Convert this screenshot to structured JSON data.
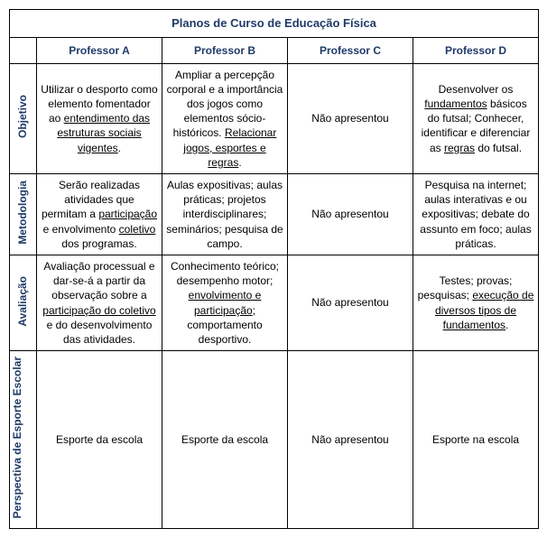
{
  "table": {
    "title": "Planos de Curso de Educação Física",
    "columns": [
      "Professor A",
      "Professor B",
      "Professor C",
      "Professor D"
    ],
    "rows": [
      {
        "header": "Objetivo",
        "cells": [
          {
            "segments": [
              {
                "t": "Utilizar o desporto como elemento fomentador ao "
              },
              {
                "t": "entendimento das estruturas sociais vigentes",
                "u": true
              },
              {
                "t": "."
              }
            ]
          },
          {
            "segments": [
              {
                "t": "Ampliar a percepção corporal e a importância dos jogos como elementos sócio-históricos. "
              },
              {
                "t": "Relacionar jogos, esportes e regras",
                "u": true
              },
              {
                "t": "."
              }
            ]
          },
          {
            "segments": [
              {
                "t": "Não apresentou"
              }
            ]
          },
          {
            "segments": [
              {
                "t": "Desenvolver os "
              },
              {
                "t": "fundamentos",
                "u": true
              },
              {
                "t": " básicos do futsal; Conhecer, identificar e diferenciar as "
              },
              {
                "t": "regras",
                "u": true
              },
              {
                "t": " do futsal."
              }
            ]
          }
        ]
      },
      {
        "header": "Metodologia",
        "cells": [
          {
            "segments": [
              {
                "t": "Serão realizadas atividades que permitam a "
              },
              {
                "t": "participação",
                "u": true
              },
              {
                "t": " e envolvimento "
              },
              {
                "t": "coletivo",
                "u": true
              },
              {
                "t": " dos programas."
              }
            ]
          },
          {
            "segments": [
              {
                "t": "Aulas expositivas; aulas práticas; projetos interdisciplinares; seminários; pesquisa de campo."
              }
            ]
          },
          {
            "segments": [
              {
                "t": "Não apresentou"
              }
            ]
          },
          {
            "segments": [
              {
                "t": "Pesquisa na internet; aulas interativas e ou expositivas; debate do assunto em foco; aulas práticas."
              }
            ]
          }
        ]
      },
      {
        "header": "Avaliação",
        "cells": [
          {
            "segments": [
              {
                "t": "Avaliação processual e dar-se-á a partir da observação sobre a "
              },
              {
                "t": "participação do coletivo",
                "u": true
              },
              {
                "t": " e do desenvolvimento das atividades."
              }
            ]
          },
          {
            "segments": [
              {
                "t": "Conhecimento teórico; desempenho motor; "
              },
              {
                "t": "envolvimento e participação",
                "u": true
              },
              {
                "t": "; comportamento desportivo."
              }
            ]
          },
          {
            "segments": [
              {
                "t": "Não apresentou"
              }
            ]
          },
          {
            "segments": [
              {
                "t": "Testes; provas; pesquisas; "
              },
              {
                "t": "execução de diversos tipos de fundamentos",
                "u": true
              },
              {
                "t": "."
              }
            ]
          }
        ]
      },
      {
        "header": "Perspectiva de Esporte Escolar",
        "cells": [
          {
            "segments": [
              {
                "t": "Esporte da escola"
              }
            ]
          },
          {
            "segments": [
              {
                "t": "Esporte da escola"
              }
            ]
          },
          {
            "segments": [
              {
                "t": "Não apresentou"
              }
            ]
          },
          {
            "segments": [
              {
                "t": "Esporte na escola"
              }
            ]
          }
        ]
      }
    ],
    "colors": {
      "header_text": "#1f3a68",
      "body_text": "#000000",
      "border": "#000000",
      "background": "#ffffff"
    },
    "fonts": {
      "family": "Arial",
      "title_size_pt": 10,
      "header_size_pt": 9,
      "body_size_pt": 9
    }
  }
}
